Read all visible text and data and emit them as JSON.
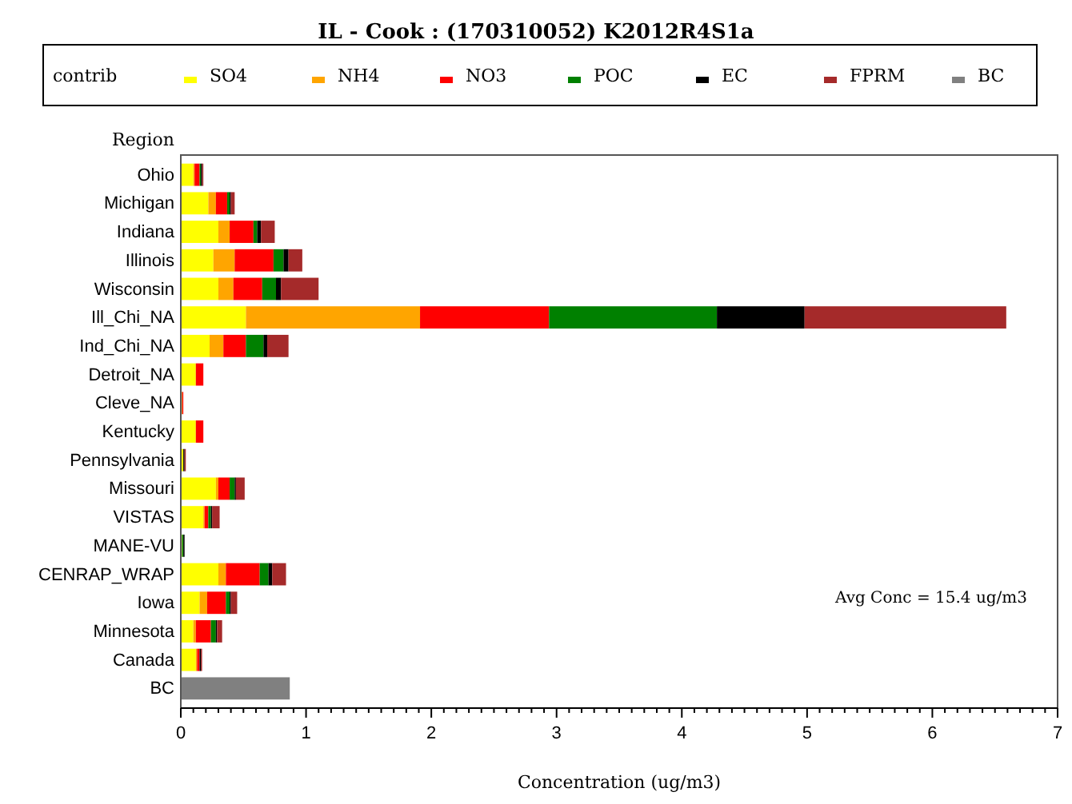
{
  "chart_data": {
    "type": "bar",
    "orientation": "horizontal",
    "stacked": true,
    "title": "IL - Cook : (170310052) K2012R4S1a",
    "xlabel": "Concentration (ug/m3)",
    "ylabel": "Region",
    "legend_title": "contrib",
    "legend": "top",
    "categories": [
      "Ohio",
      "Michigan",
      "Indiana",
      "Illinois",
      "Wisconsin",
      "Ill_Chi_NA",
      "Ind_Chi_NA",
      "Detroit_NA",
      "Cleve_NA",
      "Kentucky",
      "Pennsylvania",
      "Missouri",
      "VISTAS",
      "MANE-VU",
      "CENRAP_WRAP",
      "Iowa",
      "Minnesota",
      "Canada",
      "BC"
    ],
    "series": [
      {
        "name": "SO4",
        "color": "#ffff00",
        "values": [
          0.1,
          0.22,
          0.3,
          0.26,
          0.3,
          0.52,
          0.23,
          0.12,
          0.01,
          0.12,
          0.02,
          0.28,
          0.18,
          0.01,
          0.3,
          0.15,
          0.1,
          0.12,
          0
        ]
      },
      {
        "name": "NH4",
        "color": "#ffa500",
        "values": [
          0.01,
          0.06,
          0.09,
          0.17,
          0.12,
          1.39,
          0.11,
          0,
          0,
          0,
          0,
          0.02,
          0.01,
          0,
          0.06,
          0.06,
          0.02,
          0.01,
          0
        ]
      },
      {
        "name": "NO3",
        "color": "#ff0000",
        "values": [
          0.04,
          0.09,
          0.19,
          0.31,
          0.23,
          1.03,
          0.18,
          0.06,
          0.01,
          0.06,
          0,
          0.09,
          0.03,
          0,
          0.27,
          0.15,
          0.12,
          0.02,
          0
        ]
      },
      {
        "name": "POC",
        "color": "#008000",
        "values": [
          0.01,
          0.02,
          0.03,
          0.08,
          0.11,
          1.34,
          0.14,
          0,
          0,
          0,
          0,
          0.04,
          0.02,
          0.01,
          0.07,
          0.03,
          0.04,
          0,
          0
        ]
      },
      {
        "name": "EC",
        "color": "#000000",
        "values": [
          0.01,
          0.01,
          0.03,
          0.04,
          0.04,
          0.7,
          0.03,
          0,
          0,
          0,
          0.01,
          0.01,
          0.01,
          0.01,
          0.03,
          0.01,
          0.01,
          0.01,
          0
        ]
      },
      {
        "name": "FPRM",
        "color": "#a52a2a",
        "values": [
          0.01,
          0.03,
          0.11,
          0.11,
          0.3,
          1.61,
          0.17,
          0,
          0,
          0,
          0.01,
          0.07,
          0.06,
          0,
          0.11,
          0.05,
          0.04,
          0.01,
          0
        ]
      },
      {
        "name": "BC",
        "color": "#808080",
        "values": [
          0,
          0,
          0,
          0,
          0,
          0,
          0,
          0,
          0,
          0,
          0,
          0,
          0,
          0,
          0,
          0,
          0,
          0,
          0.87
        ]
      }
    ],
    "xlim": [
      0,
      7
    ],
    "xticks": [
      0,
      {
        "value": 0.1,
        "label": null
      },
      {
        "value": 0.2,
        "label": null
      },
      {
        "value": 0.3,
        "label": null
      },
      {
        "value": 0.4,
        "label": null
      },
      {
        "value": 0.5,
        "label": null
      },
      {
        "value": 0.6,
        "label": null
      },
      {
        "value": 0.7,
        "label": null
      },
      {
        "value": 0.8,
        "label": null
      },
      {
        "value": 0.9,
        "label": null
      },
      1,
      {
        "value": 1.1,
        "label": null
      },
      {
        "value": 1.2,
        "label": null
      },
      {
        "value": 1.3,
        "label": null
      },
      {
        "value": 1.4,
        "label": null
      },
      {
        "value": 1.5,
        "label": null
      },
      {
        "value": 1.6,
        "label": null
      },
      {
        "value": 1.7,
        "label": null
      },
      {
        "value": 1.8,
        "label": null
      },
      {
        "value": 1.9,
        "label": null
      },
      2,
      {
        "value": 2.1,
        "label": null
      },
      {
        "value": 2.2,
        "label": null
      },
      {
        "value": 2.3,
        "label": null
      },
      {
        "value": 2.4,
        "label": null
      },
      {
        "value": 2.5,
        "label": null
      },
      {
        "value": 2.6,
        "label": null
      },
      {
        "value": 2.7,
        "label": null
      },
      {
        "value": 2.8,
        "label": null
      },
      {
        "value": 2.9,
        "label": null
      },
      3,
      {
        "value": 3.1,
        "label": null
      },
      {
        "value": 3.2,
        "label": null
      },
      {
        "value": 3.3,
        "label": null
      },
      {
        "value": 3.4,
        "label": null
      },
      {
        "value": 3.5,
        "label": null
      },
      {
        "value": 3.6,
        "label": null
      },
      {
        "value": 3.7,
        "label": null
      },
      {
        "value": 3.8,
        "label": null
      },
      {
        "value": 3.9,
        "label": null
      },
      4,
      {
        "value": 4.1,
        "label": null
      },
      {
        "value": 4.2,
        "label": null
      },
      {
        "value": 4.3,
        "label": null
      },
      {
        "value": 4.4,
        "label": null
      },
      {
        "value": 4.5,
        "label": null
      },
      {
        "value": 4.6,
        "label": null
      },
      {
        "value": 4.7,
        "label": null
      },
      {
        "value": 4.8,
        "label": null
      },
      {
        "value": 4.9,
        "label": null
      },
      5,
      {
        "value": 5.1,
        "label": null
      },
      {
        "value": 5.2,
        "label": null
      },
      {
        "value": 5.3,
        "label": null
      },
      {
        "value": 5.4,
        "label": null
      },
      {
        "value": 5.5,
        "label": null
      },
      {
        "value": 5.6,
        "label": null
      },
      {
        "value": 5.7,
        "label": null
      },
      {
        "value": 5.8,
        "label": null
      },
      {
        "value": 5.9,
        "label": null
      },
      6,
      {
        "value": 6.1,
        "label": null
      },
      {
        "value": 6.2,
        "label": null
      },
      {
        "value": 6.3,
        "label": null
      },
      {
        "value": 6.4,
        "label": null
      },
      {
        "value": 6.5,
        "label": null
      },
      {
        "value": 6.6,
        "label": null
      },
      {
        "value": 6.7,
        "label": null
      },
      {
        "value": 6.8,
        "label": null
      },
      {
        "value": 6.9,
        "label": null
      },
      7
    ],
    "annotations": [
      "Avg Conc = 15.4 ug/m3"
    ]
  }
}
